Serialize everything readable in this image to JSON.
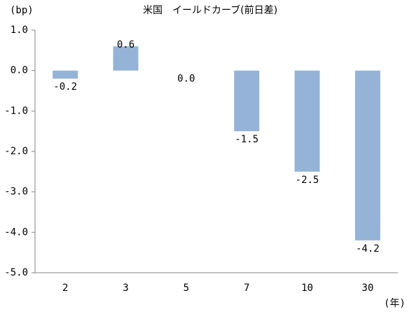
{
  "chart_data": {
    "type": "bar",
    "title": "米国　イールドカーブ(前日差)",
    "y_label": "(bp)",
    "x_label": "(年)",
    "categories": [
      "2",
      "3",
      "5",
      "7",
      "10",
      "30"
    ],
    "values": [
      -0.2,
      0.6,
      0.0,
      -1.5,
      -2.5,
      -4.2
    ],
    "value_labels": [
      "-0.2",
      "0.6",
      "0.0",
      "-1.5",
      "-2.5",
      "-4.2"
    ],
    "color": "#95b3d7",
    "ylim": [
      -5.0,
      1.0
    ],
    "yticks": [
      {
        "value": 1.0,
        "label": "1.0"
      },
      {
        "value": 0.0,
        "label": "0.0"
      },
      {
        "value": -1.0,
        "label": "-1.0"
      },
      {
        "value": -2.0,
        "label": "-2.0"
      },
      {
        "value": -3.0,
        "label": "-3.0"
      },
      {
        "value": -4.0,
        "label": "-4.0"
      },
      {
        "value": -5.0,
        "label": "-5.0"
      }
    ],
    "grid": false
  }
}
